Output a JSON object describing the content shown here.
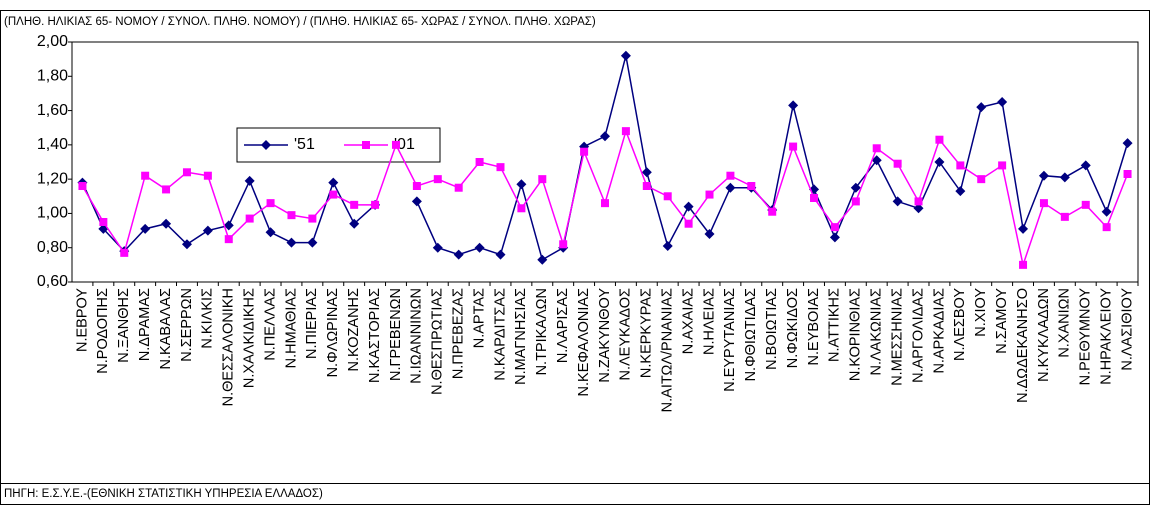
{
  "chart_data": {
    "type": "line",
    "subtitle": "(ΠΛΗΘ. ΗΛΙΚΙΑΣ 65- ΝΟΜΟΥ / ΣΥΝΟΛ. ΠΛΗΘ. ΝΟΜΟΥ) / (ΠΛΗΘ. ΗΛΙΚΙΑΣ 65- ΧΩΡΑΣ / ΣΥΝΟΛ. ΠΛΗΘ. ΧΩΡΑΣ)",
    "source": "ΠΗΓΗ: Ε.Σ.Υ.Ε.-(ΕΘΝΙΚΗ ΣΤΑΤΙΣΤΙΚΗ ΥΠΗΡΕΣΙΑ ΕΛΛΑΔΟΣ)",
    "categories": [
      "Ν.ΕΒΡΟΥ",
      "Ν.ΡΟΔΟΠΗΣ",
      "Ν.ΞΑΝΘΗΣ",
      "Ν.ΔΡΑΜΑΣ",
      "Ν.ΚΑΒΑΛΑΣ",
      "Ν.ΣΕΡΡΩΝ",
      "Ν.ΚΙΛΚΙΣ",
      "Ν.ΘΕΣΣΑΛΟΝΙΚΗ",
      "Ν.ΧΑΛΚΙΔΙΚΗΣ",
      "Ν.ΠΕΛΛΑΣ",
      "Ν.ΗΜΑΘΙΑΣ",
      "Ν.ΠΙΕΡΙΑΣ",
      "Ν.ΦΛΩΡΙΝΑΣ",
      "Ν.ΚΟΖΑΝΗΣ",
      "Ν.ΚΑΣΤΟΡΙΑΣ",
      "Ν.ΓΡΕΒΕΝΩΝ",
      "Ν.ΙΩΑΝΝΙΝΩΝ",
      "Ν.ΘΕΣΠΡΩΤΙΑΣ",
      "Ν.ΠΡΕΒΕΖΑΣ",
      "Ν.ΑΡΤΑΣ",
      "Ν.ΚΑΡΔΙΤΣΑΣ",
      "Ν.ΜΑΓΝΗΣΙΑΣ",
      "Ν.ΤΡΙΚΑΛΩΝ",
      "Ν.ΛΑΡΙΣΑΣ",
      "Ν.ΚΕΦΑΛΟΝΙΑΣ",
      "Ν.ΖΑΚΥΝΘΟΥ",
      "Ν.ΛΕΥΚΑΔΟΣ",
      "Ν.ΚΕΡΚΥΡΑΣ",
      "Ν.ΑΙΤΩΛ/ΡΝΑΝΙΑΣ",
      "Ν.ΑΧΑΙΑΣ",
      "Ν.ΗΛΕΙΑΣ",
      "Ν.ΕΥΡΥΤΑΝΙΑΣ",
      "Ν.ΦΘΙΩΤΙΔΑΣ",
      "Ν.ΒΟΙΩΤΙΑΣ",
      "Ν.ΦΩΚΙΔΟΣ",
      "Ν.ΕΥΒΟΙΑΣ",
      "Ν.ΑΤΤΙΚΗΣ",
      "Ν.ΚΟΡΙΝΘΙΑΣ",
      "Ν.ΛΑΚΩΝΙΑΣ",
      "Ν.ΜΕΣΣΗΝΙΑΣ",
      "Ν.ΑΡΓΟΛΙΔΑΣ",
      "Ν.ΑΡΚΑΔΙΑΣ",
      "Ν.ΛΕΣΒΟΥ",
      "Ν.ΧΙΟΥ",
      "Ν.ΣΑΜΟΥ",
      "Ν.ΔΩΔΕΚΑΝΗΣΟ",
      "Ν.ΚΥΚΛΑΔΩΝ",
      "Ν.ΧΑΝΙΩΝ",
      "Ν.ΡΕΘΥΜΝΟΥ",
      "Ν.ΗΡΑΚΛΕΙΟΥ",
      "Ν.ΛΑΣΙΘΙΟΥ"
    ],
    "series": [
      {
        "name": "'51",
        "color": "#000080",
        "marker": "diamond",
        "values": [
          1.18,
          0.91,
          0.78,
          0.91,
          0.94,
          0.82,
          0.9,
          0.93,
          1.19,
          0.89,
          0.83,
          0.83,
          1.18,
          0.94,
          1.05,
          null,
          1.07,
          0.8,
          0.76,
          0.8,
          0.76,
          1.17,
          0.73,
          0.8,
          1.39,
          1.45,
          1.92,
          1.24,
          0.81,
          1.04,
          0.88,
          1.15,
          1.15,
          1.02,
          1.63,
          1.14,
          0.86,
          1.15,
          1.31,
          1.07,
          1.03,
          1.3,
          1.13,
          1.62,
          1.65,
          0.91,
          1.22,
          1.21,
          1.28,
          1.01,
          1.41
        ]
      },
      {
        "name": "'01",
        "color": "#ff00ff",
        "marker": "square",
        "values": [
          1.16,
          0.95,
          0.77,
          1.22,
          1.14,
          1.24,
          1.22,
          0.85,
          0.97,
          1.06,
          0.99,
          0.97,
          1.11,
          1.05,
          1.05,
          1.4,
          1.16,
          1.2,
          1.15,
          1.3,
          1.27,
          1.03,
          1.2,
          0.82,
          1.36,
          1.06,
          1.48,
          1.16,
          1.1,
          0.94,
          1.11,
          1.22,
          1.16,
          1.01,
          1.39,
          1.09,
          0.92,
          1.07,
          1.38,
          1.29,
          1.07,
          1.43,
          1.28,
          1.2,
          1.28,
          0.7,
          1.06,
          0.98,
          1.05,
          0.92,
          1.23
        ]
      }
    ],
    "ylim": [
      0.6,
      2.0
    ],
    "yticks": [
      {
        "value": 0.6,
        "label": "0,60"
      },
      {
        "value": 0.8,
        "label": "0,80"
      },
      {
        "value": 1.0,
        "label": "1,00"
      },
      {
        "value": 1.2,
        "label": "1,20"
      },
      {
        "value": 1.4,
        "label": "1,40"
      },
      {
        "value": 1.6,
        "label": "1,60"
      },
      {
        "value": 1.8,
        "label": "1,80"
      },
      {
        "value": 2.0,
        "label": "2,00"
      }
    ],
    "grid": false
  }
}
